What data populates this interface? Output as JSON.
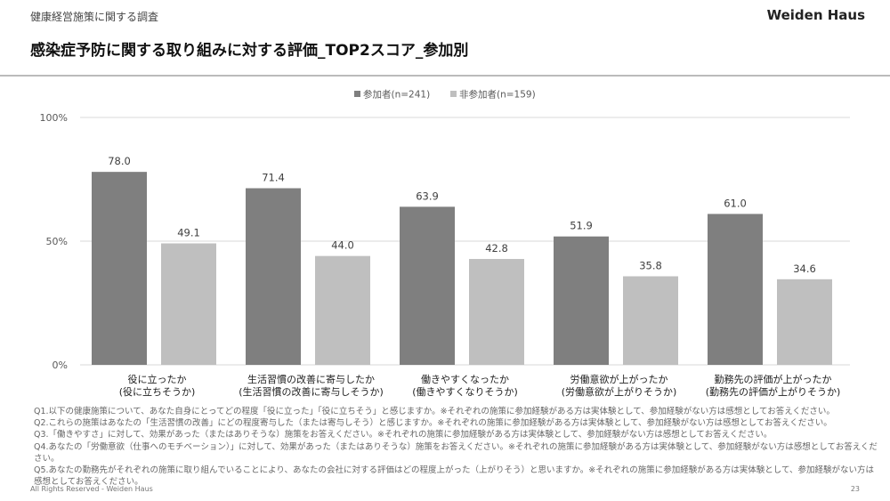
{
  "header": {
    "subtitle": "健康経営施策に関する調査",
    "brand": "Weiden Haus",
    "title": "感染症予防に関する取り組みに対する評価_TOP2スコア_参加別"
  },
  "colors": {
    "participant": "#7f7f7f",
    "non_participant": "#bfbfbf"
  },
  "chart_data": {
    "type": "bar",
    "categories": [
      [
        "役に立ったか",
        "(役に立ちそうか)"
      ],
      [
        "生活習慣の改善に寄与したか",
        "(生活習慣の改善に寄与しそうか)"
      ],
      [
        "働きやすくなったか",
        "(働きやすくなりそうか)"
      ],
      [
        "労働意欲が上がったか",
        "(労働意欲が上がりそうか)"
      ],
      [
        "勤務先の評価が上がったか",
        "(勤務先の評価が上がりそうか)"
      ]
    ],
    "series": [
      {
        "name": "参加者(n=241)",
        "values": [
          78.0,
          71.4,
          63.9,
          51.9,
          61.0
        ]
      },
      {
        "name": "非参加者(n=159)",
        "values": [
          49.1,
          44.0,
          42.8,
          35.8,
          34.6
        ]
      }
    ],
    "yticks": [
      "0%",
      "50%",
      "100%"
    ],
    "ylim": [
      0,
      100
    ],
    "legend": "top-center"
  },
  "notes": [
    "Q1.以下の健康施策について、あなた自身にとってどの程度「役に立った」「役に立ちそう」と感じますか。※それぞれの施策に参加経験がある方は実体験として、参加経験がない方は感想としてお答えください。",
    "Q2.これらの施策はあなたの「生活習慣の改善」にどの程度寄与した（または寄与しそう）と感じますか。※それぞれの施策に参加経験がある方は実体験として、参加経験がない方は感想としてお答えください。",
    "Q3.「働きやすさ」に対して、効果があった（またはありそうな）施策をお答えください。※それぞれの施策に参加経験がある方は実体験として、参加経験がない方は感想としてお答えください。",
    "Q4.あなたの「労働意欲（仕事へのモチベーション）」に対して、効果があった（またはありそうな）施策をお答えください。※それぞれの施策に参加経験がある方は実体験として、参加経験がない方は感想としてお答えください。",
    "Q5.あなたの勤務先がそれぞれの施策に取り組んでいることにより、あなたの会社に対する評価はどの程度上がった（上がりそう）と思いますか。※それぞれの施策に参加経験がある方は実体験として、参加経験がない方は感想としてお答えください。"
  ],
  "footer": {
    "copyright": "All Rights Reserved - Weiden Haus",
    "page": "23"
  }
}
